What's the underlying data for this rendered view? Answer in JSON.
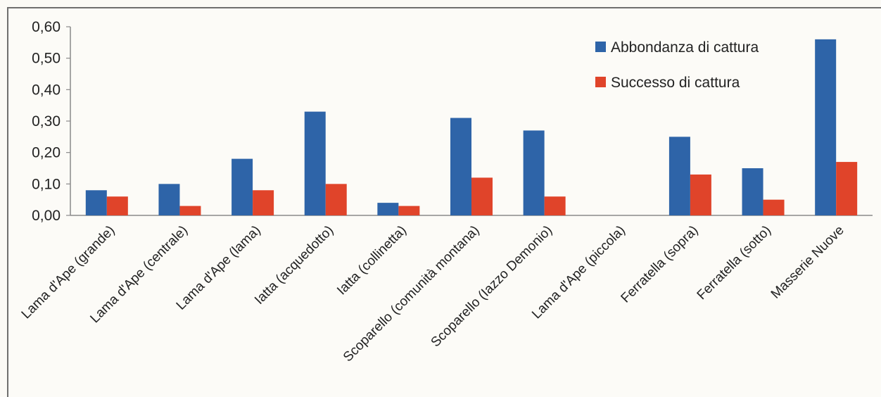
{
  "chart_data": {
    "type": "bar",
    "categories": [
      "Lama d'Ape (grande)",
      "Lama d'Ape (centrale)",
      "Lama d'Ape (lama)",
      "Iatta (acquedotto)",
      "Iatta (collinetta)",
      "Scoparello (comunità montana)",
      "Scoparello (Iazzo Demonio)",
      "Lama d'Ape (piccola)",
      "Ferratella (sopra)",
      "Ferratella (sotto)",
      "Masserie Nuove"
    ],
    "series": [
      {
        "name": "Abbondanza di cattura",
        "color": "#2e64a8",
        "values": [
          0.08,
          0.1,
          0.18,
          0.33,
          0.04,
          0.31,
          0.27,
          0.0,
          0.25,
          0.15,
          0.56
        ]
      },
      {
        "name": "Successo di cattura",
        "color": "#e0442a",
        "values": [
          0.06,
          0.03,
          0.08,
          0.1,
          0.03,
          0.12,
          0.06,
          0.0,
          0.13,
          0.05,
          0.17
        ]
      }
    ],
    "y_ticks": [
      "0,00",
      "0,10",
      "0,20",
      "0,30",
      "0,40",
      "0,50",
      "0,60"
    ],
    "ylim": [
      0,
      0.6
    ],
    "legend_position": "top-right",
    "grid": false
  }
}
